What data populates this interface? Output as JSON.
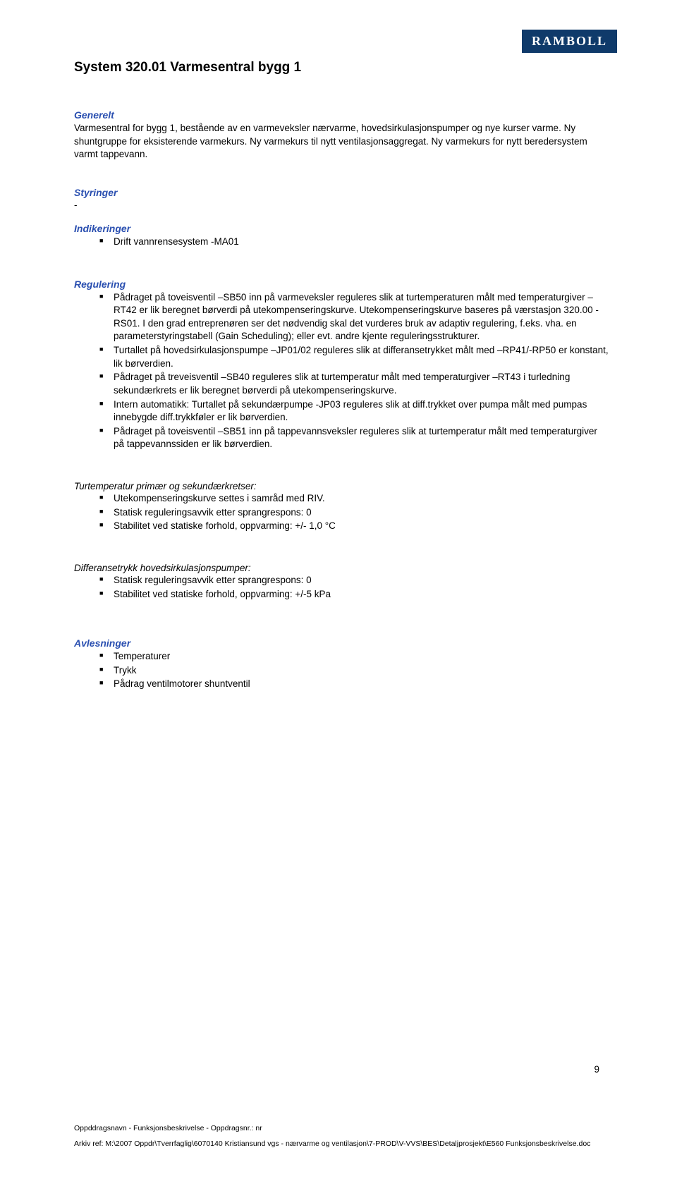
{
  "logo_text": "RAMBOLL",
  "title": "System 320.01 Varmesentral bygg 1",
  "generelt": {
    "heading": "Generelt",
    "paragraphs": [
      "Varmesentral for bygg 1, bestående av en varmeveksler nærvarme, hovedsirkulasjonspumper og nye kurser varme. Ny shuntgruppe for eksisterende varmekurs. Ny varmekurs til nytt ventilasjonsaggregat. Ny varmekurs for nytt beredersystem varmt tappevann."
    ]
  },
  "styringer": {
    "heading": "Styringer",
    "dash": "-"
  },
  "indikeringer": {
    "heading": "Indikeringer",
    "items": [
      "Drift vannrensesystem -MA01"
    ]
  },
  "regulering": {
    "heading": "Regulering",
    "items": [
      "Pådraget på toveisventil –SB50 inn på varmeveksler reguleres slik at turtemperaturen målt med temperaturgiver –RT42 er lik beregnet børverdi på utekompenseringskurve. Utekompenseringskurve baseres på værstasjon 320.00 - RS01. I den grad entreprenøren ser det nødvendig skal det vurderes bruk av adaptiv regulering, f.eks. vha. en parameterstyringstabell (Gain Scheduling); eller evt. andre kjente reguleringsstrukturer.",
      "Turtallet på hovedsirkulasjonspumpe –JP01/02 reguleres slik at differansetrykket målt med –RP41/-RP50 er konstant, lik børverdien.",
      "Pådraget på treveisventil –SB40 reguleres slik at turtemperatur målt med temperaturgiver –RT43 i turledning sekundærkrets er lik beregnet børverdi på utekompenseringskurve.",
      "Intern automatikk: Turtallet på sekundærpumpe -JP03 reguleres slik at diff.trykket over pumpa målt med pumpas innebygde diff.trykkføler er lik børverdien.",
      "Pådraget på toveisventil –SB51 inn på tappevannsveksler reguleres slik at turtemperatur målt med temperaturgiver på tappevannssiden er lik børverdien."
    ]
  },
  "sub1": {
    "heading": "Turtemperatur primær og sekundærkretser:",
    "items": [
      "Utekompenseringskurve settes i samråd med RIV.",
      "Statisk reguleringsavvik etter sprangrespons: 0",
      "Stabilitet ved statiske forhold, oppvarming: +/- 1,0 °C"
    ]
  },
  "sub2": {
    "heading": "Differansetrykk hovedsirkulasjonspumper:",
    "items": [
      "Statisk reguleringsavvik etter sprangrespons: 0",
      "Stabilitet ved statiske forhold, oppvarming: +/-5 kPa"
    ]
  },
  "avlesninger": {
    "heading": "Avlesninger",
    "items": [
      "Temperaturer",
      "Trykk",
      "Pådrag ventilmotorer shuntventil"
    ]
  },
  "page_number": "9",
  "footer": {
    "line1": "Oppddragsnavn - Funksjonsbeskrivelse - Oppdragsnr.: nr",
    "line2": "Arkiv ref: M:\\2007 Oppdr\\Tverrfaglig\\6070140 Kristiansund vgs - nærvarme og ventilasjon\\7-PROD\\V-VVS\\BES\\Detaljprosjekt\\E560 Funksjonsbeskrivelse.doc"
  }
}
